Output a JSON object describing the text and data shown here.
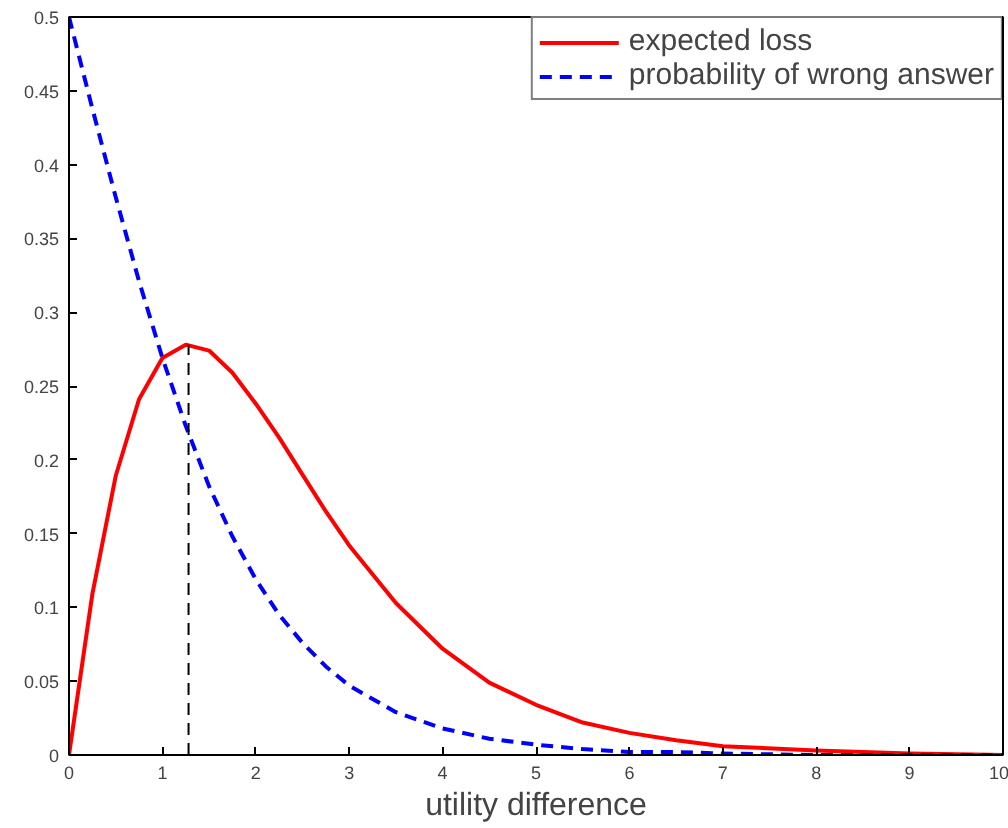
{
  "chart_data": {
    "type": "line",
    "xlabel": "utility difference",
    "xlim": [
      0,
      10
    ],
    "ylim": [
      0,
      0.5
    ],
    "xticks": [
      0,
      1,
      2,
      3,
      4,
      5,
      6,
      7,
      8,
      9,
      10
    ],
    "yticks": [
      0,
      0.05,
      0.1,
      0.15,
      0.2,
      0.25,
      0.3,
      0.35,
      0.4,
      0.45,
      0.5
    ],
    "grid": false,
    "legend": "top right",
    "marker": "none",
    "series": [
      {
        "name": "expected loss",
        "color": "#ff0000",
        "line_style": "solid",
        "x": [
          0,
          0.25,
          0.5,
          0.75,
          1,
          1.25,
          1.5,
          1.75,
          2,
          2.25,
          2.5,
          2.75,
          3,
          3.5,
          4,
          4.5,
          5,
          5.5,
          6,
          6.5,
          7,
          8,
          9,
          10
        ],
        "values": [
          0,
          0.109,
          0.189,
          0.241,
          0.269,
          0.278,
          0.274,
          0.259,
          0.238,
          0.215,
          0.19,
          0.165,
          0.142,
          0.103,
          0.072,
          0.049,
          0.034,
          0.022,
          0.015,
          0.01,
          0.006,
          0.003,
          0.001,
          0
        ]
      },
      {
        "name": "probability of wrong answer",
        "color": "#0000ff",
        "line_style": "dashed",
        "x": [
          0,
          0.25,
          0.5,
          0.75,
          1,
          1.25,
          1.5,
          1.75,
          2,
          2.25,
          2.5,
          2.75,
          3,
          3.5,
          4,
          4.5,
          5,
          5.5,
          6,
          6.5,
          7,
          8,
          9,
          10
        ],
        "values": [
          0.5,
          0.438,
          0.378,
          0.321,
          0.269,
          0.223,
          0.182,
          0.148,
          0.119,
          0.095,
          0.076,
          0.06,
          0.047,
          0.029,
          0.018,
          0.011,
          0.007,
          0.004,
          0.002,
          0.002,
          0.001,
          0,
          0,
          0
        ]
      },
      {
        "color": "#000000",
        "line_style": "dashed",
        "x": [
          1.28,
          1.28
        ],
        "values": [
          0,
          0.278
        ]
      }
    ]
  }
}
